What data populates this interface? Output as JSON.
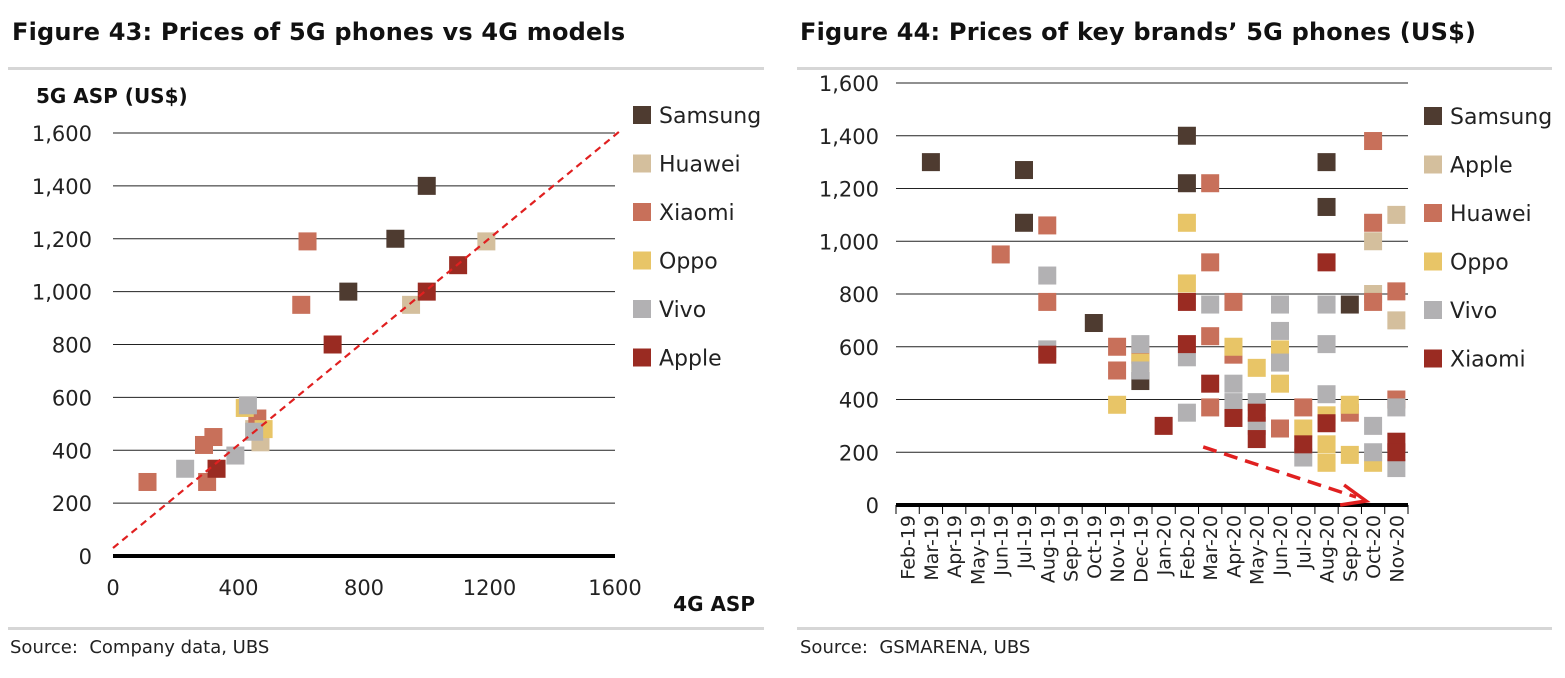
{
  "chart_data": [
    {
      "type": "scatter",
      "title": "Figure 43: Prices of 5G phones vs 4G models",
      "ylabel": "5G ASP (US$)",
      "xlabel": "4G ASP",
      "xlim": [
        0,
        1600
      ],
      "ylim": [
        0,
        1600
      ],
      "x_ticks": [
        "0",
        "400",
        "800",
        "1200",
        "1600"
      ],
      "y_ticks": [
        "0",
        "200",
        "400",
        "600",
        "800",
        "1,000",
        "1,200",
        "1,400",
        "1,600"
      ],
      "reference_line": "y = x (dashed red)",
      "grid": "horizontal",
      "legend_position": "right",
      "source": "Source:  Company data, UBS",
      "series": [
        {
          "name": "Samsung",
          "color": "#4e3b30",
          "points": [
            [
              1000,
              1400
            ],
            [
              900,
              1200
            ],
            [
              750,
              1000
            ]
          ]
        },
        {
          "name": "Huawei",
          "color": "#d4bf9d",
          "points": [
            [
              1190,
              1190
            ],
            [
              950,
              950
            ],
            [
              470,
              430
            ],
            [
              450,
              480
            ],
            [
              330,
              330
            ]
          ]
        },
        {
          "name": "Xiaomi",
          "color": "#c8705a",
          "points": [
            [
              620,
              1190
            ],
            [
              600,
              950
            ],
            [
              110,
              280
            ],
            [
              290,
              420
            ],
            [
              320,
              450
            ],
            [
              300,
              280
            ],
            [
              460,
              520
            ]
          ]
        },
        {
          "name": "Oppo",
          "color": "#e8c567",
          "points": [
            [
              420,
              560
            ],
            [
              480,
              480
            ]
          ]
        },
        {
          "name": "Vivo",
          "color": "#b2b1b3",
          "points": [
            [
              230,
              330
            ],
            [
              390,
              380
            ],
            [
              430,
              570
            ],
            [
              450,
              470
            ]
          ]
        },
        {
          "name": "Apple",
          "color": "#9a2b22",
          "points": [
            [
              1100,
              1100
            ],
            [
              1000,
              1000
            ],
            [
              700,
              800
            ],
            [
              330,
              330
            ]
          ]
        }
      ]
    },
    {
      "type": "scatter",
      "title": "Figure 44: Prices of key brands’ 5G phones (US$)",
      "ylim": [
        0,
        1600
      ],
      "y_ticks": [
        "0",
        "200",
        "400",
        "600",
        "800",
        "1,000",
        "1,200",
        "1,400",
        "1,600"
      ],
      "categories": [
        "Feb-19",
        "Mar-19",
        "Apr-19",
        "May-19",
        "Jun-19",
        "Jul-19",
        "Aug-19",
        "Sep-19",
        "Oct-19",
        "Nov-19",
        "Dec-19",
        "Jan-20",
        "Feb-20",
        "Mar-20",
        "Apr-20",
        "May-20",
        "Jun-20",
        "Jul-20",
        "Aug-20",
        "Sep-20",
        "Oct-20",
        "Nov-20"
      ],
      "grid": "horizontal",
      "legend_position": "right",
      "trend_arrow": "downward dashed red arrow from Feb-20 to Oct-20",
      "source": "Source:  GSMARENA, UBS",
      "series": [
        {
          "name": "Samsung",
          "color": "#4e3b30",
          "points": [
            [
              "Mar-19",
              1300
            ],
            [
              "Jul-19",
              1270
            ],
            [
              "Jul-19",
              1070
            ],
            [
              "Oct-19",
              690
            ],
            [
              "Dec-19",
              470
            ],
            [
              "Feb-20",
              1400
            ],
            [
              "Feb-20",
              1220
            ],
            [
              "Aug-20",
              1300
            ],
            [
              "Aug-20",
              1130
            ],
            [
              "Sep-20",
              760
            ]
          ]
        },
        {
          "name": "Apple",
          "color": "#d4bf9d",
          "points": [
            [
              "Oct-20",
              1000
            ],
            [
              "Oct-20",
              800
            ],
            [
              "Nov-20",
              1100
            ],
            [
              "Nov-20",
              700
            ]
          ]
        },
        {
          "name": "Huawei",
          "color": "#c8705a",
          "points": [
            [
              "Jun-19",
              950
            ],
            [
              "Aug-19",
              1060
            ],
            [
              "Aug-19",
              770
            ],
            [
              "Nov-19",
              600
            ],
            [
              "Nov-19",
              510
            ],
            [
              "Dec-19",
              570
            ],
            [
              "Mar-20",
              1220
            ],
            [
              "Mar-20",
              920
            ],
            [
              "Mar-20",
              640
            ],
            [
              "Mar-20",
              370
            ],
            [
              "Apr-20",
              770
            ],
            [
              "Apr-20",
              570
            ],
            [
              "Jun-20",
              290
            ],
            [
              "Jul-20",
              370
            ],
            [
              "Sep-20",
              350
            ],
            [
              "Oct-20",
              1380
            ],
            [
              "Oct-20",
              1070
            ],
            [
              "Oct-20",
              770
            ],
            [
              "Nov-20",
              810
            ],
            [
              "Nov-20",
              400
            ]
          ]
        },
        {
          "name": "Oppo",
          "color": "#e8c567",
          "points": [
            [
              "Nov-19",
              380
            ],
            [
              "Dec-19",
              540
            ],
            [
              "Feb-20",
              1070
            ],
            [
              "Feb-20",
              840
            ],
            [
              "Apr-20",
              600
            ],
            [
              "May-20",
              520
            ],
            [
              "Jun-20",
              590
            ],
            [
              "Jun-20",
              460
            ],
            [
              "Jul-20",
              290
            ],
            [
              "Aug-20",
              340
            ],
            [
              "Aug-20",
              230
            ],
            [
              "Aug-20",
              160
            ],
            [
              "Sep-20",
              380
            ],
            [
              "Sep-20",
              190
            ],
            [
              "Oct-20",
              160
            ]
          ]
        },
        {
          "name": "Vivo",
          "color": "#b2b1b3",
          "points": [
            [
              "Aug-19",
              870
            ],
            [
              "Aug-19",
              590
            ],
            [
              "Dec-19",
              610
            ],
            [
              "Dec-19",
              510
            ],
            [
              "Feb-20",
              560
            ],
            [
              "Feb-20",
              350
            ],
            [
              "Mar-20",
              760
            ],
            [
              "Apr-20",
              460
            ],
            [
              "Apr-20",
              390
            ],
            [
              "May-20",
              390
            ],
            [
              "May-20",
              300
            ],
            [
              "Jun-20",
              760
            ],
            [
              "Jun-20",
              660
            ],
            [
              "Jun-20",
              540
            ],
            [
              "Jul-20",
              180
            ],
            [
              "Aug-20",
              760
            ],
            [
              "Aug-20",
              610
            ],
            [
              "Aug-20",
              420
            ],
            [
              "Oct-20",
              300
            ],
            [
              "Oct-20",
              200
            ],
            [
              "Nov-20",
              370
            ],
            [
              "Nov-20",
              140
            ]
          ]
        },
        {
          "name": "Xiaomi",
          "color": "#9a2b22",
          "points": [
            [
              "Aug-19",
              570
            ],
            [
              "Jan-20",
              300
            ],
            [
              "Feb-20",
              770
            ],
            [
              "Feb-20",
              610
            ],
            [
              "Mar-20",
              460
            ],
            [
              "Apr-20",
              330
            ],
            [
              "May-20",
              350
            ],
            [
              "May-20",
              250
            ],
            [
              "Jul-20",
              230
            ],
            [
              "Aug-20",
              920
            ],
            [
              "Aug-20",
              310
            ],
            [
              "Nov-20",
              240
            ],
            [
              "Nov-20",
              200
            ]
          ]
        }
      ]
    }
  ]
}
